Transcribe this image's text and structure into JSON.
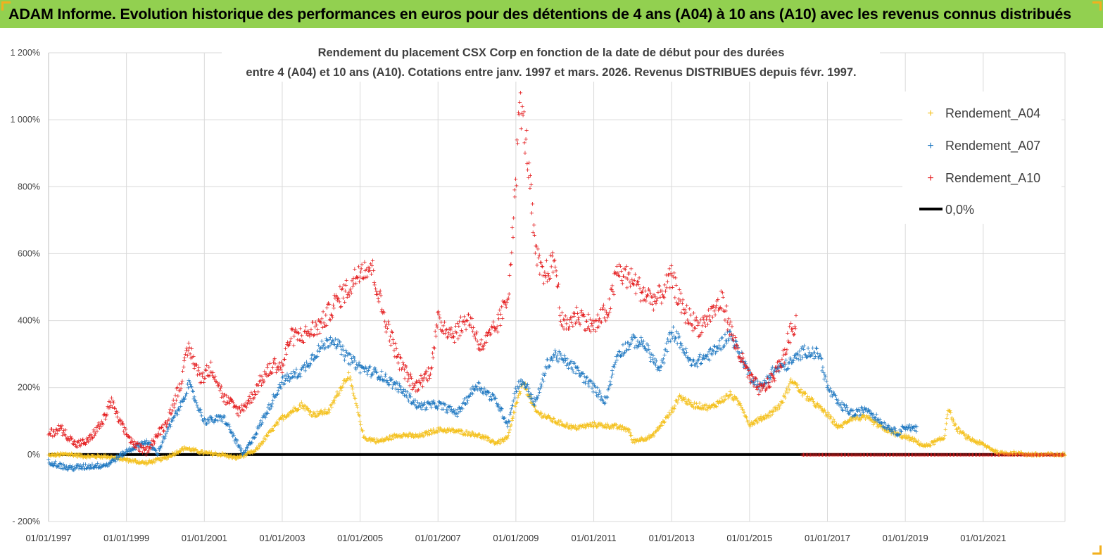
{
  "header": {
    "title": "ADAM Informe. Evolution historique des performances en euros pour des détentions de 4 ans (A04) à 10 ans (A10) avec les revenus connus distribués"
  },
  "colors": {
    "header_bg": "#92d050",
    "a04": "#f4c11e",
    "a07": "#1f78c1",
    "a10": "#e41a1c",
    "zero": "#000000",
    "grid": "#d9d9d9"
  },
  "chart_data": {
    "type": "scatter",
    "title_line1": "Rendement du placement CSX Corp en fonction de la date de début pour des durées",
    "title_line2": "entre 4 (A04) et 10 ans (A10). Cotations entre janv. 1997 et mars. 2026. Revenus DISTRIBUES depuis févr. 1997.",
    "y_axis": {
      "min": -200,
      "max": 1200,
      "step": 200,
      "unit": "%"
    },
    "y_tick_labels": [
      "- 200%",
      "0%",
      "200%",
      "400%",
      "600%",
      "800%",
      "1 000%",
      "1 200%"
    ],
    "x_axis": {
      "min": 1997.0,
      "max": 2023.1
    },
    "x_tick_labels": [
      "01/01/1997",
      "01/01/1999",
      "01/01/2001",
      "01/01/2003",
      "01/01/2005",
      "01/01/2007",
      "01/01/2009",
      "01/01/2011",
      "01/01/2013",
      "01/01/2015",
      "01/01/2017",
      "01/01/2019",
      "01/01/2021"
    ],
    "x_tick_years": [
      1997,
      1999,
      2001,
      2003,
      2005,
      2007,
      2009,
      2011,
      2013,
      2015,
      2017,
      2019,
      2021
    ],
    "legend": [
      "Rendement_A04",
      "Rendement_A07",
      "Rendement_A10",
      "0,0%"
    ],
    "series": [
      {
        "name": "Rendement_A04",
        "end": 2023.1,
        "points": [
          [
            1997.0,
            -2
          ],
          [
            1997.5,
            2
          ],
          [
            1998.0,
            -5
          ],
          [
            1998.5,
            -5
          ],
          [
            1999.0,
            -15
          ],
          [
            1999.5,
            -25
          ],
          [
            2000.0,
            -10
          ],
          [
            2000.5,
            20
          ],
          [
            2001.0,
            5
          ],
          [
            2001.5,
            0
          ],
          [
            2001.8,
            -10
          ],
          [
            2002.3,
            10
          ],
          [
            2002.6,
            55
          ],
          [
            2003.0,
            110
          ],
          [
            2003.5,
            150
          ],
          [
            2003.8,
            120
          ],
          [
            2004.2,
            130
          ],
          [
            2004.5,
            200
          ],
          [
            2004.7,
            240
          ],
          [
            2004.9,
            150
          ],
          [
            2005.1,
            50
          ],
          [
            2005.5,
            40
          ],
          [
            2006.0,
            60
          ],
          [
            2006.5,
            55
          ],
          [
            2007.0,
            75
          ],
          [
            2007.5,
            70
          ],
          [
            2008.0,
            60
          ],
          [
            2008.5,
            35
          ],
          [
            2008.8,
            50
          ],
          [
            2009.0,
            150
          ],
          [
            2009.2,
            215
          ],
          [
            2009.5,
            130
          ],
          [
            2010.0,
            100
          ],
          [
            2010.5,
            80
          ],
          [
            2011.0,
            90
          ],
          [
            2011.5,
            85
          ],
          [
            2011.9,
            75
          ],
          [
            2012.0,
            40
          ],
          [
            2012.5,
            55
          ],
          [
            2013.0,
            130
          ],
          [
            2013.2,
            175
          ],
          [
            2013.5,
            150
          ],
          [
            2014.0,
            140
          ],
          [
            2014.5,
            180
          ],
          [
            2014.8,
            145
          ],
          [
            2015.0,
            90
          ],
          [
            2015.5,
            120
          ],
          [
            2015.8,
            150
          ],
          [
            2016.1,
            225
          ],
          [
            2016.3,
            190
          ],
          [
            2016.6,
            160
          ],
          [
            2017.0,
            120
          ],
          [
            2017.3,
            80
          ],
          [
            2017.6,
            110
          ],
          [
            2018.0,
            110
          ],
          [
            2018.4,
            80
          ],
          [
            2018.8,
            60
          ],
          [
            2019.2,
            45
          ],
          [
            2019.5,
            25
          ],
          [
            2020.0,
            50
          ],
          [
            2020.1,
            140
          ],
          [
            2020.3,
            80
          ],
          [
            2020.6,
            50
          ],
          [
            2021.0,
            30
          ],
          [
            2021.4,
            5
          ],
          [
            2021.8,
            5
          ],
          [
            2022.3,
            0
          ],
          [
            2022.6,
            0
          ],
          [
            2023.1,
            0
          ]
        ]
      },
      {
        "name": "Rendement_A07",
        "end": 2019.3,
        "points": [
          [
            1997.0,
            -20
          ],
          [
            1997.5,
            -40
          ],
          [
            1998.0,
            -35
          ],
          [
            1998.5,
            -30
          ],
          [
            1999.0,
            10
          ],
          [
            1999.5,
            40
          ],
          [
            1999.8,
            5
          ],
          [
            2000.0,
            60
          ],
          [
            2000.4,
            150
          ],
          [
            2000.6,
            210
          ],
          [
            2001.0,
            100
          ],
          [
            2001.5,
            110
          ],
          [
            2002.0,
            0
          ],
          [
            2002.3,
            60
          ],
          [
            2002.7,
            150
          ],
          [
            2003.0,
            220
          ],
          [
            2003.5,
            250
          ],
          [
            2003.9,
            310
          ],
          [
            2004.3,
            350
          ],
          [
            2004.6,
            300
          ],
          [
            2005.0,
            260
          ],
          [
            2005.5,
            240
          ],
          [
            2006.0,
            200
          ],
          [
            2006.5,
            145
          ],
          [
            2007.0,
            150
          ],
          [
            2007.5,
            125
          ],
          [
            2008.0,
            210
          ],
          [
            2008.5,
            160
          ],
          [
            2008.8,
            90
          ],
          [
            2009.0,
            200
          ],
          [
            2009.2,
            220
          ],
          [
            2009.5,
            150
          ],
          [
            2009.8,
            270
          ],
          [
            2010.0,
            300
          ],
          [
            2010.5,
            260
          ],
          [
            2011.0,
            200
          ],
          [
            2011.3,
            160
          ],
          [
            2011.6,
            300
          ],
          [
            2012.0,
            340
          ],
          [
            2012.3,
            330
          ],
          [
            2012.7,
            250
          ],
          [
            2013.0,
            370
          ],
          [
            2013.2,
            340
          ],
          [
            2013.5,
            270
          ],
          [
            2014.0,
            300
          ],
          [
            2014.5,
            360
          ],
          [
            2014.8,
            290
          ],
          [
            2015.0,
            240
          ],
          [
            2015.3,
            200
          ],
          [
            2015.6,
            250
          ],
          [
            2016.0,
            270
          ],
          [
            2016.4,
            310
          ],
          [
            2016.8,
            300
          ],
          [
            2017.0,
            200
          ],
          [
            2017.3,
            150
          ],
          [
            2017.7,
            120
          ],
          [
            2018.0,
            140
          ],
          [
            2018.4,
            95
          ],
          [
            2018.8,
            65
          ],
          [
            2019.0,
            85
          ],
          [
            2019.3,
            75
          ]
        ]
      },
      {
        "name": "Rendement_A10",
        "end": 2016.2,
        "points": [
          [
            1997.0,
            60
          ],
          [
            1997.3,
            80
          ],
          [
            1997.7,
            30
          ],
          [
            1998.0,
            40
          ],
          [
            1998.4,
            100
          ],
          [
            1998.6,
            160
          ],
          [
            1998.9,
            80
          ],
          [
            1999.2,
            30
          ],
          [
            1999.5,
            10
          ],
          [
            1999.8,
            60
          ],
          [
            2000.0,
            90
          ],
          [
            2000.2,
            150
          ],
          [
            2000.4,
            220
          ],
          [
            2000.6,
            320
          ],
          [
            2000.9,
            230
          ],
          [
            2001.2,
            260
          ],
          [
            2001.5,
            170
          ],
          [
            2001.9,
            130
          ],
          [
            2002.2,
            170
          ],
          [
            2002.5,
            230
          ],
          [
            2002.8,
            270
          ],
          [
            2003.0,
            260
          ],
          [
            2003.2,
            350
          ],
          [
            2003.6,
            360
          ],
          [
            2004.0,
            390
          ],
          [
            2004.4,
            460
          ],
          [
            2004.8,
            510
          ],
          [
            2005.0,
            560
          ],
          [
            2005.3,
            560
          ],
          [
            2005.6,
            420
          ],
          [
            2006.0,
            280
          ],
          [
            2006.4,
            200
          ],
          [
            2006.8,
            250
          ],
          [
            2007.0,
            400
          ],
          [
            2007.4,
            360
          ],
          [
            2007.8,
            410
          ],
          [
            2008.1,
            320
          ],
          [
            2008.5,
            380
          ],
          [
            2008.8,
            470
          ],
          [
            2009.0,
            820
          ],
          [
            2009.1,
            1060
          ],
          [
            2009.3,
            900
          ],
          [
            2009.5,
            600
          ],
          [
            2009.7,
            530
          ],
          [
            2010.0,
            580
          ],
          [
            2010.2,
            380
          ],
          [
            2010.6,
            420
          ],
          [
            2011.0,
            380
          ],
          [
            2011.4,
            440
          ],
          [
            2011.6,
            550
          ],
          [
            2012.0,
            520
          ],
          [
            2012.3,
            480
          ],
          [
            2012.6,
            460
          ],
          [
            2013.0,
            530
          ],
          [
            2013.3,
            430
          ],
          [
            2013.7,
            380
          ],
          [
            2014.0,
            420
          ],
          [
            2014.3,
            460
          ],
          [
            2014.6,
            340
          ],
          [
            2015.0,
            230
          ],
          [
            2015.3,
            190
          ],
          [
            2015.6,
            230
          ],
          [
            2015.9,
            300
          ],
          [
            2016.0,
            350
          ],
          [
            2016.2,
            400
          ]
        ]
      },
      {
        "name": "0,0%",
        "points": [
          [
            1997.0,
            0
          ],
          [
            2023.1,
            0
          ]
        ]
      }
    ]
  }
}
